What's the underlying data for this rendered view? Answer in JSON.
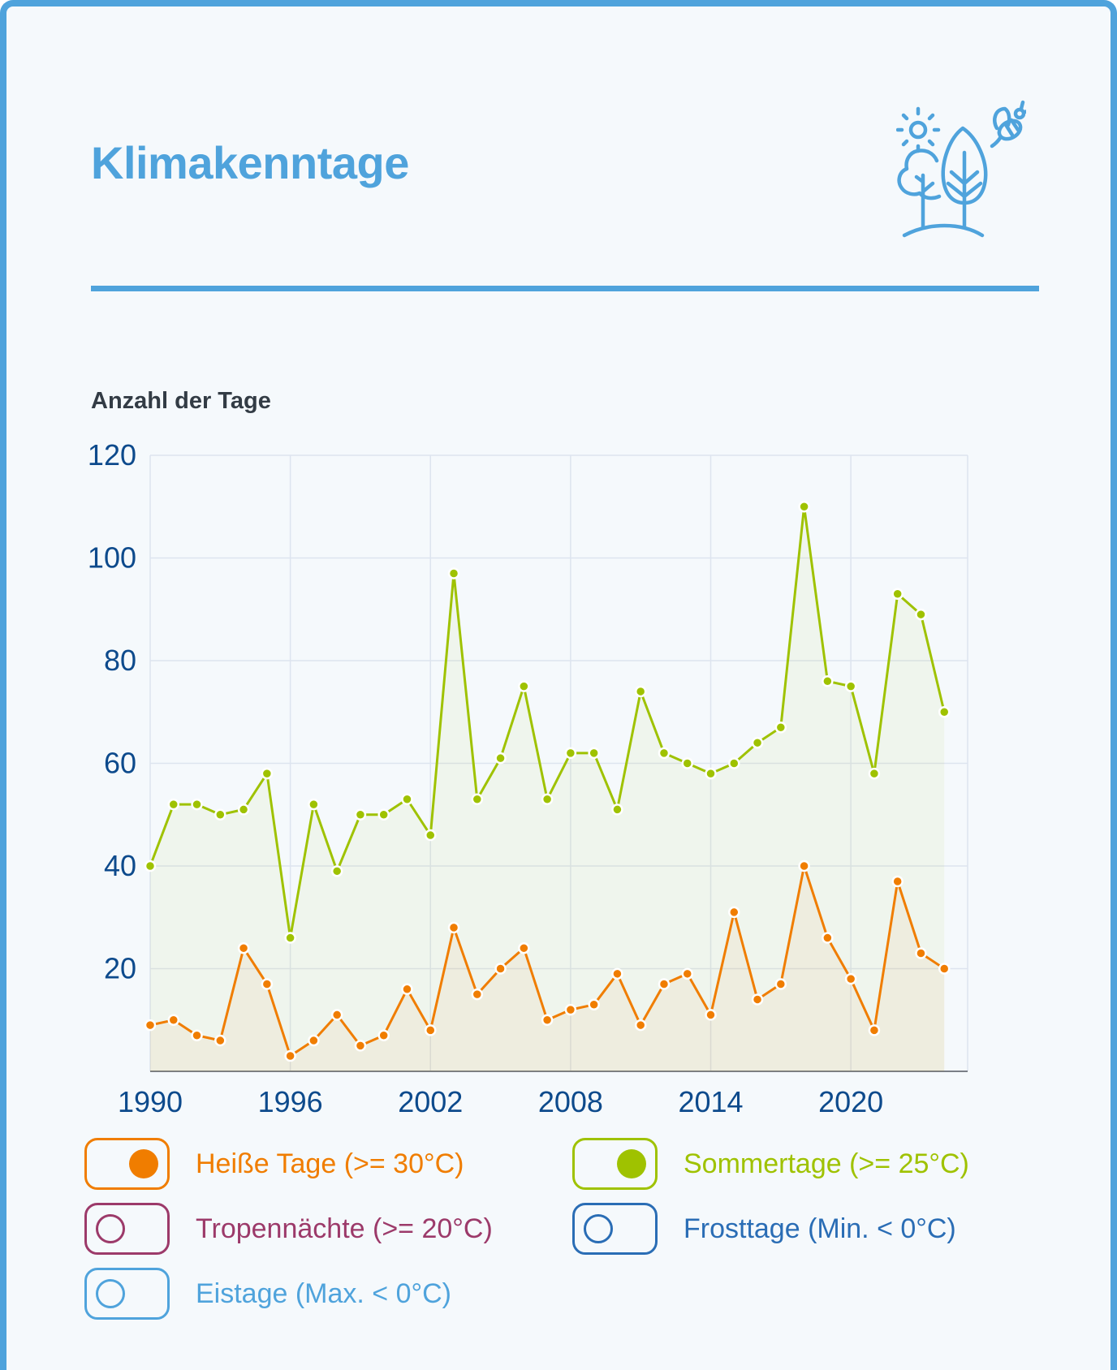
{
  "header": {
    "title": "Klimakenntage",
    "icon": "nature-trees-sun-bee-icon"
  },
  "colors": {
    "accent": "#4fa3dc",
    "hot": "#f07d00",
    "summer": "#9fc200",
    "tropical": "#9c3a6a",
    "frost": "#2a6db5",
    "ice": "#4fa3dc"
  },
  "chart_data": {
    "type": "line",
    "ylabel": "Anzahl der Tage",
    "ylim": [
      0,
      120
    ],
    "yticks": [
      "20",
      "40",
      "60",
      "80",
      "100",
      "120"
    ],
    "xlim": [
      1990,
      2025
    ],
    "xticks": [
      "1990",
      "1996",
      "2002",
      "2008",
      "2014",
      "2020"
    ],
    "grid": true,
    "x": [
      1990,
      1991,
      1992,
      1993,
      1994,
      1995,
      1996,
      1997,
      1998,
      1999,
      2000,
      2001,
      2002,
      2003,
      2004,
      2005,
      2006,
      2007,
      2008,
      2009,
      2010,
      2011,
      2012,
      2013,
      2014,
      2015,
      2016,
      2017,
      2018,
      2019,
      2020,
      2021,
      2022,
      2023,
      2024
    ],
    "series": [
      {
        "name": "Sommertage (>= 25°C)",
        "color": "#9fc200",
        "visible": true,
        "values": [
          40,
          52,
          52,
          50,
          51,
          58,
          26,
          52,
          39,
          50,
          50,
          53,
          46,
          97,
          53,
          61,
          75,
          53,
          62,
          62,
          51,
          74,
          62,
          60,
          58,
          60,
          64,
          67,
          110,
          76,
          75,
          58,
          93,
          89,
          70
        ]
      },
      {
        "name": "Heiße Tage (>= 30°C)",
        "color": "#f07d00",
        "visible": true,
        "values": [
          9,
          10,
          7,
          6,
          24,
          17,
          3,
          6,
          11,
          5,
          7,
          16,
          8,
          28,
          15,
          20,
          24,
          10,
          12,
          13,
          19,
          9,
          17,
          19,
          11,
          31,
          14,
          17,
          40,
          26,
          18,
          8,
          37,
          23,
          20
        ]
      }
    ]
  },
  "legend": [
    {
      "label": "Heiße Tage (>= 30°C)",
      "color": "#f07d00",
      "on": true
    },
    {
      "label": "Sommertage (>= 25°C)",
      "color": "#9fc200",
      "on": true
    },
    {
      "label": "Tropennächte (>= 20°C)",
      "color": "#9c3a6a",
      "on": false
    },
    {
      "label": "Frosttage (Min. < 0°C)",
      "color": "#2a6db5",
      "on": false
    },
    {
      "label": "Eistage (Max. < 0°C)",
      "color": "#4fa3dc",
      "on": false
    }
  ]
}
